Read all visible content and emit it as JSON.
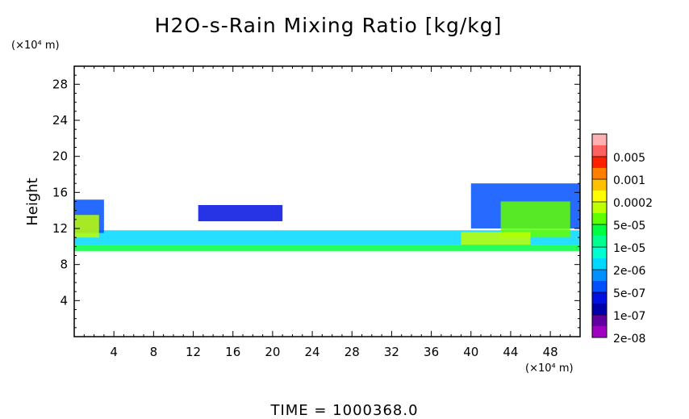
{
  "chart_data": {
    "type": "heatmap",
    "title": "H2O-s-Rain Mixing Ratio [kg/kg]",
    "xlabel": "",
    "ylabel": "Height",
    "x_unit": "(×10⁴ m)",
    "y_unit": "(×10⁴ m)",
    "xlim": [
      0,
      51
    ],
    "ylim": [
      0,
      30
    ],
    "x_ticks": [
      "4",
      "8",
      "12",
      "16",
      "20",
      "24",
      "28",
      "32",
      "36",
      "40",
      "44",
      "48"
    ],
    "y_ticks": [
      "4",
      "8",
      "12",
      "16",
      "20",
      "24",
      "28"
    ],
    "colorbar": {
      "labels": [
        "0.005",
        "0.001",
        "0.0002",
        "5e-05",
        "1e-05",
        "2e-06",
        "5e-07",
        "1e-07",
        "2e-08"
      ],
      "colors": [
        "#ffb0b0",
        "#ff6060",
        "#ff2000",
        "#ff8000",
        "#ffc000",
        "#ffff00",
        "#c0ff00",
        "#60ff00",
        "#00ff40",
        "#00ff90",
        "#00ffd0",
        "#00d8ff",
        "#0090ff",
        "#0050ff",
        "#0010e0",
        "#0000a8",
        "#6000a0",
        "#a000c0"
      ]
    },
    "regions": [
      {
        "x": [
          0,
          51
        ],
        "y": [
          9.5,
          10.2
        ],
        "level": 8
      },
      {
        "x": [
          0,
          51
        ],
        "y": [
          10.2,
          11.8
        ],
        "level": 11
      },
      {
        "x": [
          0,
          3
        ],
        "y": [
          11.5,
          15.2
        ],
        "level": 13
      },
      {
        "x": [
          0,
          2.5
        ],
        "y": [
          11,
          13.5
        ],
        "level": 6
      },
      {
        "x": [
          12.5,
          21
        ],
        "y": [
          12.8,
          14.6
        ],
        "level": 14
      },
      {
        "x": [
          40,
          51
        ],
        "y": [
          12,
          17
        ],
        "level": 13
      },
      {
        "x": [
          43,
          50
        ],
        "y": [
          11,
          15
        ],
        "level": 7
      },
      {
        "x": [
          39,
          46
        ],
        "y": [
          10.2,
          11.6
        ],
        "level": 6
      }
    ],
    "footer": "TIME = 1000368.0"
  }
}
